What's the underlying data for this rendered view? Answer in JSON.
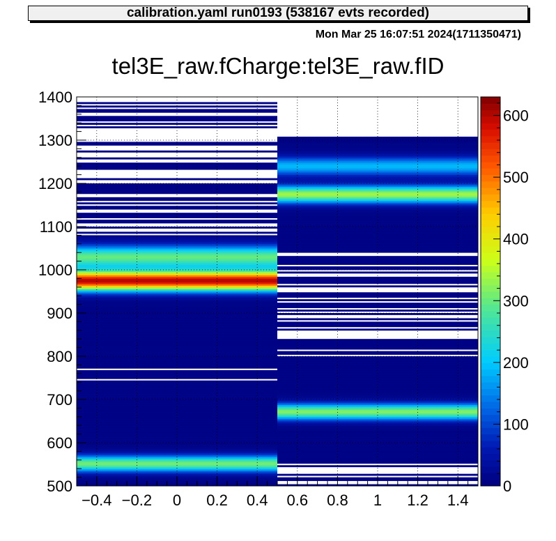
{
  "header": {
    "info_box": "calibration.yaml  run0193 (538167 evts recorded)",
    "timestamp": "Mon Mar 25 16:07:51 2024(1711350471)"
  },
  "chart_data": {
    "type": "heatmap",
    "title": "tel3E_raw.fCharge:tel3E_raw.fID",
    "xlabel": "",
    "ylabel": "",
    "xlim": [
      -0.5,
      1.5
    ],
    "ylim": [
      500,
      1400
    ],
    "zlim": [
      0,
      630
    ],
    "grid": true,
    "colormap": "rainbow",
    "x_ticks": [
      "−0.4",
      "−0.2",
      "0",
      "0.2",
      "0.4",
      "0.6",
      "0.8",
      "1",
      "1.2",
      "1.4"
    ],
    "x_tick_values": [
      -0.4,
      -0.2,
      0,
      0.2,
      0.4,
      0.6,
      0.8,
      1.0,
      1.2,
      1.4
    ],
    "y_ticks": [
      "500",
      "600",
      "700",
      "800",
      "900",
      "1000",
      "1100",
      "1200",
      "1300",
      "1400"
    ],
    "y_tick_values": [
      500,
      600,
      700,
      800,
      900,
      1000,
      1100,
      1200,
      1300,
      1400
    ],
    "z_ticks": [
      "0",
      "100",
      "200",
      "300",
      "400",
      "500",
      "600"
    ],
    "z_tick_values": [
      0,
      100,
      200,
      300,
      400,
      500,
      600
    ],
    "columns": [
      {
        "id": 0,
        "x_range": [
          -0.5,
          0.5
        ],
        "charge_range": [
          500,
          1392
        ],
        "peaks": [
          {
            "center": 975,
            "sigma": 16,
            "amplitude": 590
          },
          {
            "center": 1030,
            "sigma": 18,
            "amplitude": 290
          },
          {
            "center": 552,
            "sigma": 13,
            "amplitude": 300
          }
        ],
        "sparse_above": 1078,
        "gaps": [
          [
            741,
            745
          ],
          [
            766,
            770
          ]
        ]
      },
      {
        "id": 1,
        "x_range": [
          0.5,
          1.5
        ],
        "charge_range": [
          500,
          1305
        ],
        "peaks": [
          {
            "center": 1175,
            "sigma": 14,
            "amplitude": 330
          },
          {
            "center": 1240,
            "sigma": 15,
            "amplitude": 180
          },
          {
            "center": 672,
            "sigma": 13,
            "amplitude": 310
          }
        ],
        "sparse_between": [
          [
            800,
            1045
          ],
          [
            502,
            555
          ]
        ],
        "gaps": []
      }
    ]
  }
}
